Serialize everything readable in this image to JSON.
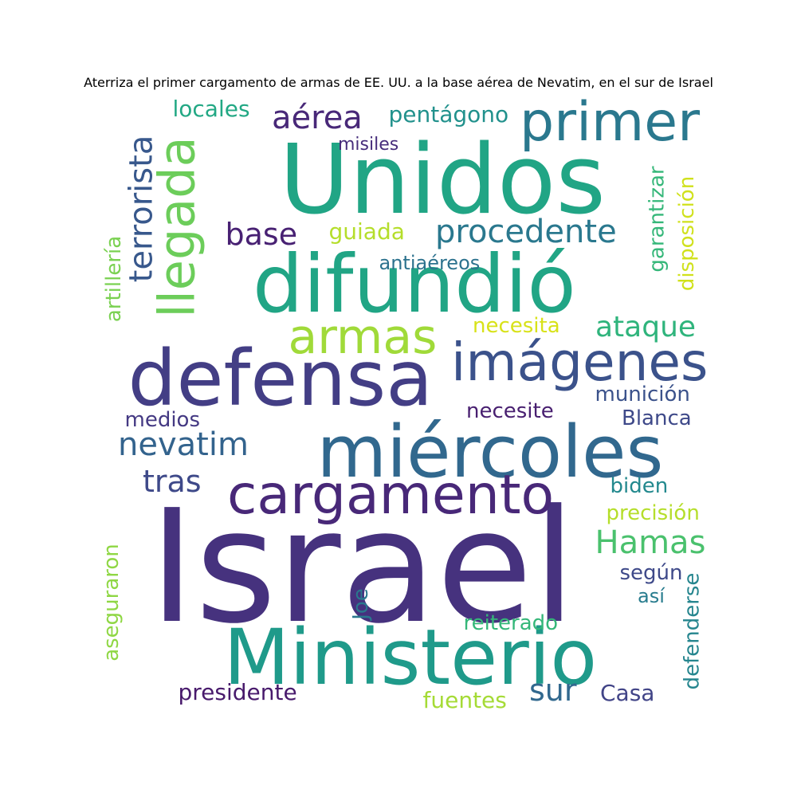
{
  "title": "Aterriza el primer cargamento de armas de EE. UU. a  la base aérea de Nevatim, en el sur de Israel",
  "words": [
    {
      "text": "Israel",
      "color": "#46327e",
      "vertical": false
    },
    {
      "text": "Unidos",
      "color": "#21a585",
      "vertical": false
    },
    {
      "text": "difundió",
      "color": "#21a585",
      "vertical": false
    },
    {
      "text": "Ministerio",
      "color": "#1f9a8a",
      "vertical": false
    },
    {
      "text": "defensa",
      "color": "#433e85",
      "vertical": false
    },
    {
      "text": "miércoles",
      "color": "#31688e",
      "vertical": false
    },
    {
      "text": "primer",
      "color": "#2a788e",
      "vertical": false
    },
    {
      "text": "cargamento",
      "color": "#482878",
      "vertical": false
    },
    {
      "text": "imágenes",
      "color": "#3b528b",
      "vertical": false
    },
    {
      "text": "llegada",
      "color": "#6ccd5a",
      "vertical": true
    },
    {
      "text": "armas",
      "color": "#a0da39",
      "vertical": false
    },
    {
      "text": "terrorista",
      "color": "#38588c",
      "vertical": true
    },
    {
      "text": "aérea",
      "color": "#482878",
      "vertical": false
    },
    {
      "text": "procedente",
      "color": "#2a788e",
      "vertical": false
    },
    {
      "text": "nevatim",
      "color": "#33638d",
      "vertical": false
    },
    {
      "text": "Hamas",
      "color": "#4ac16d",
      "vertical": false
    },
    {
      "text": "ataque",
      "color": "#2fb47c",
      "vertical": false
    },
    {
      "text": "tras",
      "color": "#3e4989",
      "vertical": false
    },
    {
      "text": "base",
      "color": "#482173",
      "vertical": false
    },
    {
      "text": "sur",
      "color": "#31688e",
      "vertical": false
    },
    {
      "text": "locales",
      "color": "#22a884",
      "vertical": false
    },
    {
      "text": "pentágono",
      "color": "#21918c",
      "vertical": false
    },
    {
      "text": "artillería",
      "color": "#7ad151",
      "vertical": true
    },
    {
      "text": "garantizar",
      "color": "#35b779",
      "vertical": true
    },
    {
      "text": "disposición",
      "color": "#d0e11c",
      "vertical": true
    },
    {
      "text": "guiada",
      "color": "#b5de2b",
      "vertical": false
    },
    {
      "text": "antiaéreos",
      "color": "#2c728e",
      "vertical": false
    },
    {
      "text": "necesita",
      "color": "#d8e219",
      "vertical": false
    },
    {
      "text": "munición",
      "color": "#3b528b",
      "vertical": false
    },
    {
      "text": "medios",
      "color": "#443983",
      "vertical": false
    },
    {
      "text": "necesite",
      "color": "#481f70",
      "vertical": false
    },
    {
      "text": "Blanca",
      "color": "#3e4989",
      "vertical": false
    },
    {
      "text": "biden",
      "color": "#23898e",
      "vertical": false
    },
    {
      "text": "precisión",
      "color": "#b5de2b",
      "vertical": false
    },
    {
      "text": "según",
      "color": "#3e4989",
      "vertical": false
    },
    {
      "text": "así",
      "color": "#287c8e",
      "vertical": false
    },
    {
      "text": "aseguraron",
      "color": "#8fd744",
      "vertical": true
    },
    {
      "text": "Joe",
      "color": "#2a788e",
      "vertical": true
    },
    {
      "text": "reiterado",
      "color": "#35b779",
      "vertical": false
    },
    {
      "text": "defenderse",
      "color": "#25858e",
      "vertical": true
    },
    {
      "text": "presidente",
      "color": "#481a6c",
      "vertical": false
    },
    {
      "text": "fuentes",
      "color": "#a5db36",
      "vertical": false
    },
    {
      "text": "Casa",
      "color": "#414487",
      "vertical": false
    },
    {
      "text": "misiles",
      "color": "#472d7b",
      "vertical": false
    }
  ]
}
